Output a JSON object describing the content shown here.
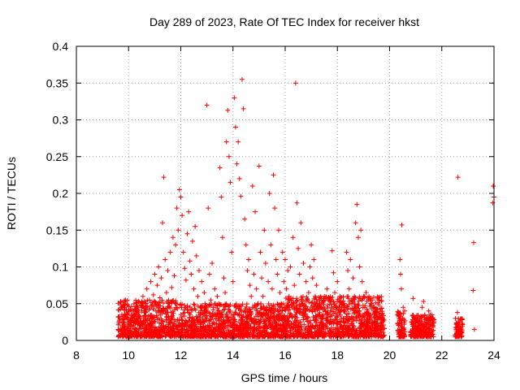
{
  "chart_data": {
    "type": "scatter",
    "title": "Day 289 of 2023, Rate Of TEC Index for receiver hkst",
    "xlabel": "GPS time / hours",
    "ylabel": "ROTI / TECUs",
    "xlim": [
      8,
      24
    ],
    "ylim": [
      0,
      0.4
    ],
    "x_ticks": [
      8,
      10,
      12,
      14,
      16,
      18,
      20,
      22,
      24
    ],
    "x_tick_labels": [
      "8",
      "10",
      "12",
      "14",
      "16",
      "18",
      "20",
      "22",
      "24"
    ],
    "y_ticks": [
      0,
      0.05,
      0.1,
      0.15,
      0.2,
      0.25,
      0.3,
      0.35,
      0.4
    ],
    "y_tick_labels": [
      "0",
      "0.05",
      "0.1",
      "0.15",
      "0.2",
      "0.25",
      "0.3",
      "0.35",
      "0.4"
    ],
    "grid": true,
    "marker": "plus",
    "series": [
      {
        "color": "#ff0000",
        "points": [
          [
            9.7,
            0.012
          ],
          [
            9.75,
            0.02
          ],
          [
            9.8,
            0.025
          ],
          [
            9.85,
            0.015
          ],
          [
            9.9,
            0.03
          ],
          [
            9.95,
            0.018
          ],
          [
            10.0,
            0.022
          ],
          [
            10.05,
            0.014
          ],
          [
            10.1,
            0.028
          ],
          [
            10.15,
            0.019
          ],
          [
            10.2,
            0.024
          ],
          [
            10.25,
            0.016
          ],
          [
            10.3,
            0.035
          ],
          [
            10.35,
            0.042
          ],
          [
            10.4,
            0.052
          ],
          [
            10.45,
            0.03
          ],
          [
            10.5,
            0.045
          ],
          [
            10.55,
            0.06
          ],
          [
            10.6,
            0.038
          ],
          [
            10.65,
            0.05
          ],
          [
            10.7,
            0.07
          ],
          [
            10.75,
            0.033
          ],
          [
            10.8,
            0.055
          ],
          [
            10.85,
            0.08
          ],
          [
            10.9,
            0.048
          ],
          [
            10.95,
            0.062
          ],
          [
            11.0,
            0.09
          ],
          [
            11.05,
            0.04
          ],
          [
            11.1,
            0.075
          ],
          [
            11.15,
            0.1
          ],
          [
            11.2,
            0.058
          ],
          [
            11.25,
            0.085
          ],
          [
            11.3,
            0.16
          ],
          [
            11.35,
            0.222
          ],
          [
            11.4,
            0.11
          ],
          [
            11.45,
            0.065
          ],
          [
            11.5,
            0.095
          ],
          [
            11.55,
            0.05
          ],
          [
            11.6,
            0.12
          ],
          [
            11.65,
            0.072
          ],
          [
            11.7,
            0.14
          ],
          [
            11.75,
            0.088
          ],
          [
            11.8,
            0.13
          ],
          [
            11.85,
            0.18
          ],
          [
            11.9,
            0.15
          ],
          [
            11.95,
            0.205
          ],
          [
            12.0,
            0.195
          ],
          [
            12.05,
            0.17
          ],
          [
            12.1,
            0.12
          ],
          [
            12.15,
            0.098
          ],
          [
            12.2,
            0.082
          ],
          [
            12.25,
            0.145
          ],
          [
            12.3,
            0.175
          ],
          [
            12.35,
            0.108
          ],
          [
            12.4,
            0.09
          ],
          [
            12.45,
            0.135
          ],
          [
            12.5,
            0.07
          ],
          [
            12.55,
            0.155
          ],
          [
            12.6,
            0.115
          ],
          [
            12.65,
            0.06
          ],
          [
            12.7,
            0.095
          ],
          [
            12.75,
            0.045
          ],
          [
            12.8,
            0.08
          ],
          [
            12.85,
            0.035
          ],
          [
            12.9,
            0.065
          ],
          [
            12.95,
            0.04
          ],
          [
            13.0,
            0.32
          ],
          [
            13.05,
            0.18
          ],
          [
            13.1,
            0.09
          ],
          [
            13.15,
            0.055
          ],
          [
            13.2,
            0.105
          ],
          [
            13.25,
            0.045
          ],
          [
            13.3,
            0.07
          ],
          [
            13.35,
            0.035
          ],
          [
            13.4,
            0.06
          ],
          [
            13.45,
            0.05
          ],
          [
            13.5,
            0.235
          ],
          [
            13.55,
            0.195
          ],
          [
            13.6,
            0.14
          ],
          [
            13.65,
            0.085
          ],
          [
            13.7,
            0.065
          ],
          [
            13.75,
            0.27
          ],
          [
            13.8,
            0.313
          ],
          [
            13.85,
            0.25
          ],
          [
            13.9,
            0.215
          ],
          [
            13.95,
            0.12
          ],
          [
            14.0,
            0.08
          ],
          [
            14.05,
            0.33
          ],
          [
            14.1,
            0.29
          ],
          [
            14.15,
            0.24
          ],
          [
            14.2,
            0.27
          ],
          [
            14.25,
            0.22
          ],
          [
            14.3,
            0.196
          ],
          [
            14.35,
            0.355
          ],
          [
            14.4,
            0.315
          ],
          [
            14.45,
            0.165
          ],
          [
            14.5,
            0.13
          ],
          [
            14.55,
            0.095
          ],
          [
            14.6,
            0.11
          ],
          [
            14.65,
            0.075
          ],
          [
            14.7,
            0.06
          ],
          [
            14.75,
            0.21
          ],
          [
            14.8,
            0.09
          ],
          [
            14.85,
            0.175
          ],
          [
            14.9,
            0.07
          ],
          [
            14.95,
            0.05
          ],
          [
            15.0,
            0.237
          ],
          [
            15.05,
            0.12
          ],
          [
            15.1,
            0.085
          ],
          [
            15.15,
            0.06
          ],
          [
            15.2,
            0.15
          ],
          [
            15.25,
            0.105
          ],
          [
            15.3,
            0.045
          ],
          [
            15.35,
            0.08
          ],
          [
            15.4,
            0.2
          ],
          [
            15.45,
            0.13
          ],
          [
            15.5,
            0.07
          ],
          [
            15.55,
            0.225
          ],
          [
            15.6,
            0.18
          ],
          [
            15.65,
            0.11
          ],
          [
            15.7,
            0.09
          ],
          [
            15.75,
            0.15
          ],
          [
            15.8,
            0.065
          ],
          [
            15.85,
            0.05
          ],
          [
            15.9,
            0.12
          ],
          [
            15.95,
            0.08
          ],
          [
            16.0,
            0.11
          ],
          [
            16.05,
            0.07
          ],
          [
            16.1,
            0.095
          ],
          [
            16.15,
            0.06
          ],
          [
            16.2,
            0.1
          ],
          [
            16.25,
            0.045
          ],
          [
            16.3,
            0.14
          ],
          [
            16.35,
            0.075
          ],
          [
            16.4,
            0.35
          ],
          [
            16.45,
            0.187
          ],
          [
            16.5,
            0.125
          ],
          [
            16.55,
            0.09
          ],
          [
            16.6,
            0.16
          ],
          [
            16.65,
            0.055
          ],
          [
            16.7,
            0.105
          ],
          [
            16.75,
            0.04
          ],
          [
            16.8,
            0.08
          ],
          [
            16.85,
            0.03
          ],
          [
            16.9,
            0.065
          ],
          [
            16.95,
            0.1
          ],
          [
            17.0,
            0.13
          ],
          [
            17.05,
            0.085
          ],
          [
            17.1,
            0.11
          ],
          [
            17.15,
            0.06
          ],
          [
            17.2,
            0.075
          ],
          [
            17.25,
            0.035
          ],
          [
            17.3,
            0.05
          ],
          [
            17.35,
            0.025
          ],
          [
            17.4,
            0.045
          ],
          [
            17.45,
            0.03
          ],
          [
            17.5,
            0.06
          ],
          [
            17.55,
            0.04
          ],
          [
            17.6,
            0.07
          ],
          [
            17.65,
            0.035
          ],
          [
            17.7,
            0.055
          ],
          [
            17.75,
            0.028
          ],
          [
            17.8,
            0.122
          ],
          [
            17.85,
            0.092
          ],
          [
            17.9,
            0.065
          ],
          [
            17.95,
            0.045
          ],
          [
            18.0,
            0.08
          ],
          [
            18.05,
            0.04
          ],
          [
            18.1,
            0.06
          ],
          [
            18.15,
            0.03
          ],
          [
            18.2,
            0.05
          ],
          [
            18.25,
            0.025
          ],
          [
            18.3,
            0.04
          ],
          [
            18.35,
            0.12
          ],
          [
            18.4,
            0.095
          ],
          [
            18.45,
            0.07
          ],
          [
            18.5,
            0.11
          ],
          [
            18.55,
            0.05
          ],
          [
            18.6,
            0.085
          ],
          [
            18.65,
            0.06
          ],
          [
            18.7,
            0.16
          ],
          [
            18.75,
            0.185
          ],
          [
            18.8,
            0.14
          ],
          [
            18.85,
            0.1
          ],
          [
            18.9,
            0.15
          ],
          [
            18.95,
            0.08
          ],
          [
            19.0,
            0.06
          ],
          [
            19.05,
            0.045
          ],
          [
            19.1,
            0.065
          ],
          [
            19.15,
            0.035
          ],
          [
            19.2,
            0.055
          ],
          [
            19.25,
            0.03
          ],
          [
            19.3,
            0.048
          ],
          [
            19.35,
            0.025
          ],
          [
            19.4,
            0.04
          ],
          [
            19.45,
            0.022
          ],
          [
            19.5,
            0.035
          ],
          [
            19.55,
            0.018
          ],
          [
            19.6,
            0.03
          ],
          [
            19.65,
            0.015
          ],
          [
            19.7,
            0.025
          ],
          [
            20.35,
            0.02
          ],
          [
            20.4,
            0.11
          ],
          [
            20.42,
            0.09
          ],
          [
            20.45,
            0.07
          ],
          [
            20.47,
            0.157
          ],
          [
            20.5,
            0.03
          ],
          [
            20.52,
            0.045
          ],
          [
            20.55,
            0.015
          ],
          [
            20.85,
            0.025
          ],
          [
            20.9,
            0.057
          ],
          [
            20.95,
            0.018
          ],
          [
            21.0,
            0.03
          ],
          [
            21.05,
            0.012
          ],
          [
            21.1,
            0.022
          ],
          [
            21.2,
            0.015
          ],
          [
            21.25,
            0.045
          ],
          [
            21.3,
            0.053
          ],
          [
            21.35,
            0.035
          ],
          [
            21.4,
            0.025
          ],
          [
            21.45,
            0.018
          ],
          [
            21.5,
            0.04
          ],
          [
            21.55,
            0.02
          ],
          [
            21.6,
            0.03
          ],
          [
            21.65,
            0.012
          ],
          [
            22.55,
            0.015
          ],
          [
            22.6,
            0.038
          ],
          [
            22.62,
            0.222
          ],
          [
            22.65,
            0.025
          ],
          [
            22.7,
            0.018
          ],
          [
            23.2,
            0.068
          ],
          [
            23.22,
            0.133
          ],
          [
            23.25,
            0.015
          ],
          [
            23.95,
            0.187
          ],
          [
            23.97,
            0.21
          ],
          [
            24.0,
            0.195
          ]
        ]
      }
    ],
    "dense_band": {
      "color": "#ff0000",
      "segments": [
        [
          9.6,
          12.0,
          0.005,
          0.055
        ],
        [
          12.0,
          16.0,
          0.005,
          0.05
        ],
        [
          16.0,
          19.8,
          0.005,
          0.06
        ],
        [
          20.3,
          20.6,
          0.005,
          0.04
        ],
        [
          20.8,
          21.7,
          0.005,
          0.035
        ],
        [
          22.5,
          22.8,
          0.005,
          0.03
        ]
      ]
    }
  }
}
